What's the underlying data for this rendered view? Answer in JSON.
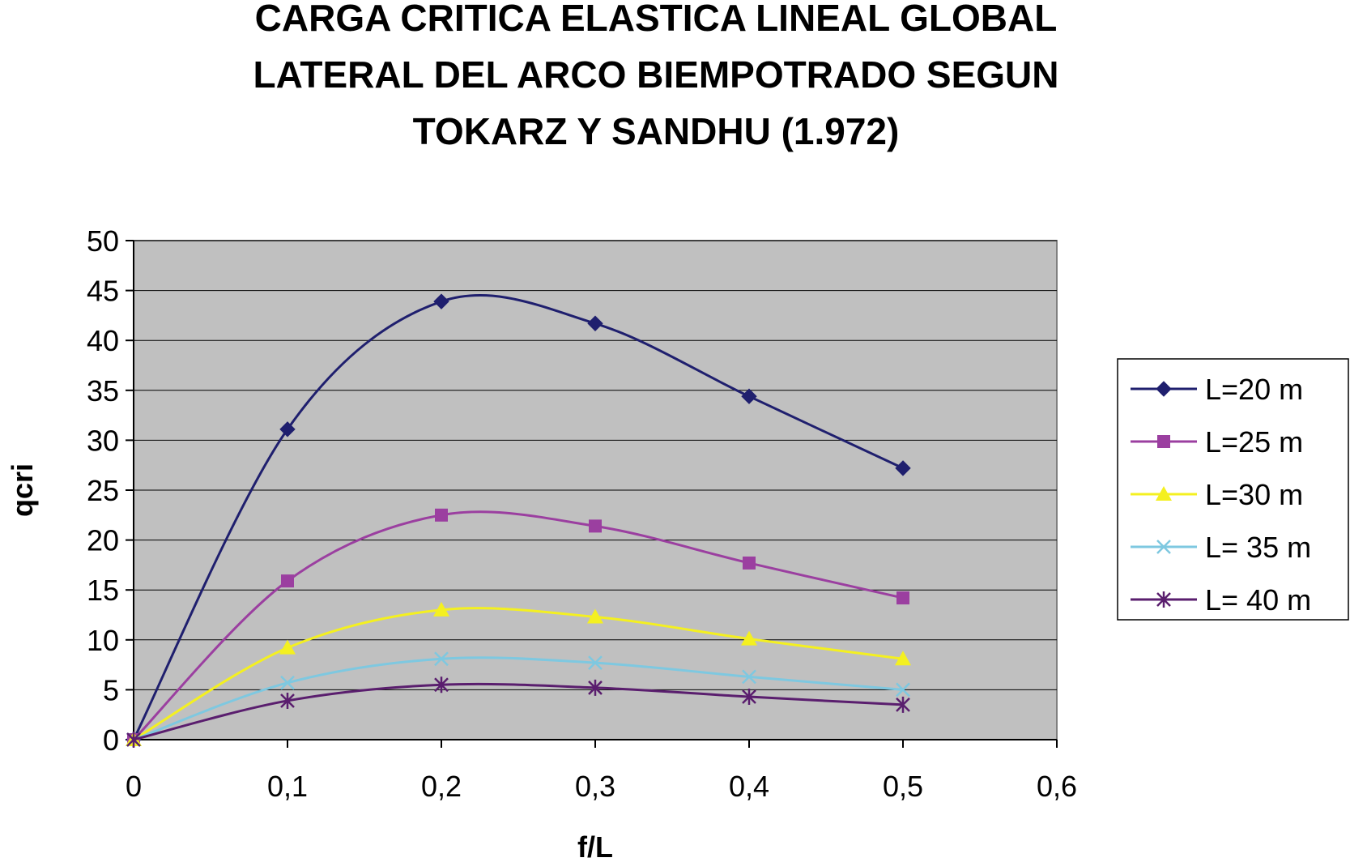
{
  "chart_data": {
    "type": "line",
    "title_lines": [
      "CARGA CRITICA ELASTICA LINEAL GLOBAL",
      "LATERAL DEL ARCO BIEMPOTRADO SEGUN",
      "TOKARZ Y SANDHU (1.972)"
    ],
    "xlabel": "f/L",
    "ylabel": "qcri",
    "xlim": [
      0,
      0.6
    ],
    "ylim": [
      0,
      50
    ],
    "x_ticks": [
      "0",
      "0,1",
      "0,2",
      "0,3",
      "0,4",
      "0,5",
      "0,6"
    ],
    "y_ticks": [
      "0",
      "5",
      "10",
      "15",
      "20",
      "25",
      "30",
      "35",
      "40",
      "45",
      "50"
    ],
    "x": [
      0,
      0.1,
      0.2,
      0.3,
      0.4,
      0.5
    ],
    "grid": "horizontal",
    "plot_background": "#c0c0c0",
    "legend_position": "right",
    "series": [
      {
        "name": "L=20 m",
        "values": [
          0,
          31.1,
          43.9,
          41.7,
          34.4,
          27.2
        ],
        "color": "#1f1f6e",
        "marker": "diamond"
      },
      {
        "name": "L=25 m",
        "values": [
          0,
          15.9,
          22.5,
          21.4,
          17.7,
          14.2
        ],
        "color": "#9b3fa0",
        "marker": "square"
      },
      {
        "name": "L=30 m",
        "values": [
          0,
          9.2,
          13.0,
          12.3,
          10.1,
          8.1
        ],
        "color": "#f4f020",
        "marker": "triangle"
      },
      {
        "name": "L= 35 m",
        "values": [
          0,
          5.7,
          8.1,
          7.7,
          6.3,
          5.0
        ],
        "color": "#7ec8e0",
        "marker": "x"
      },
      {
        "name": "L= 40 m",
        "values": [
          0,
          3.9,
          5.5,
          5.2,
          4.3,
          3.5
        ],
        "color": "#5a1e6e",
        "marker": "star"
      }
    ]
  }
}
